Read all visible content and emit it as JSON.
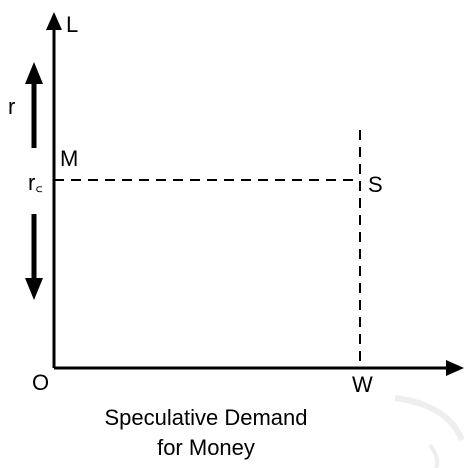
{
  "diagram": {
    "axis_y_label": "L",
    "axis_x_label_origin": "O",
    "axis_x_label_end": "W",
    "arrow_up_label": "r",
    "point_m_label": "M",
    "level_label": "r꜀",
    "point_s_label": "S",
    "caption_line1": "Speculative Demand",
    "caption_line2": "for Money"
  }
}
